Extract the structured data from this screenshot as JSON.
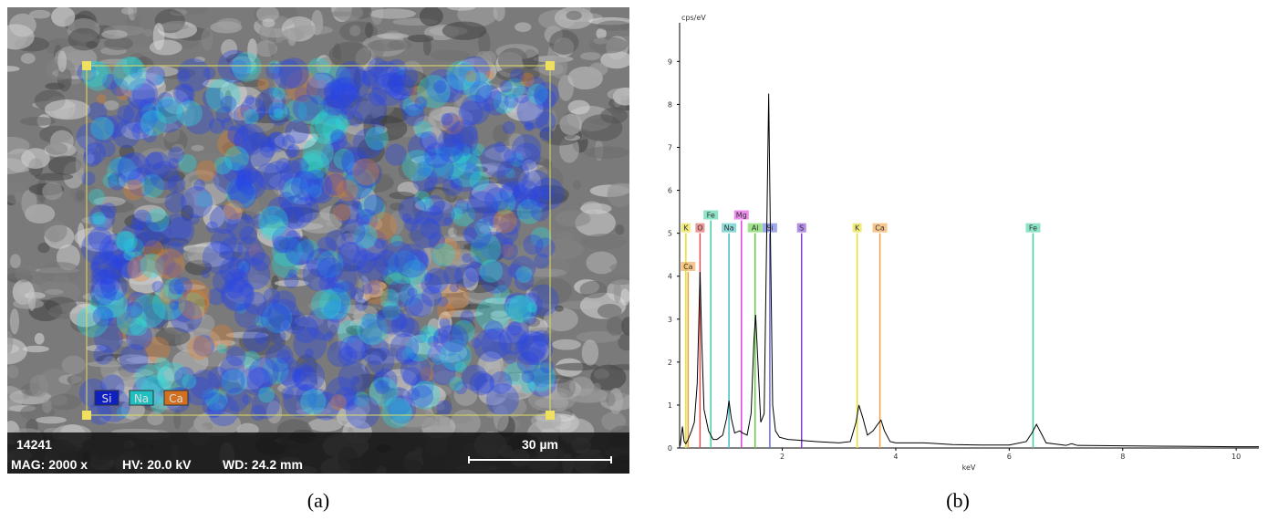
{
  "panel_a": {
    "image_label": "14241",
    "mag": "MAG: 2000 x",
    "hv": "HV: 20.0 kV",
    "wd": "WD: 24.2 mm",
    "scale_bar": "30 µm",
    "legend": [
      "Si",
      "Na",
      "Ca"
    ],
    "caption": "(a)"
  },
  "panel_b": {
    "caption": "(b)"
  },
  "chart_data": {
    "type": "line",
    "y_label": "cps/eV",
    "x_label": "keV",
    "xlim": [
      0.19,
      10.4
    ],
    "ylim": [
      0,
      9.9
    ],
    "xticks": [
      2,
      4,
      6,
      8,
      10
    ],
    "yticks": [
      0,
      1,
      2,
      3,
      4,
      5,
      6,
      7,
      8,
      9
    ],
    "series": [
      {
        "color": "#000000",
        "x": [
          0.2,
          0.24,
          0.27,
          0.3,
          0.34,
          0.4,
          0.45,
          0.5,
          0.53,
          0.55,
          0.58,
          0.62,
          0.7,
          0.78,
          0.85,
          0.95,
          1.02,
          1.06,
          1.1,
          1.16,
          1.25,
          1.3,
          1.38,
          1.45,
          1.5,
          1.53,
          1.57,
          1.62,
          1.68,
          1.72,
          1.76,
          1.79,
          1.83,
          1.88,
          1.95,
          2.1,
          2.3,
          2.6,
          3.0,
          3.2,
          3.3,
          3.35,
          3.42,
          3.5,
          3.6,
          3.68,
          3.74,
          3.8,
          3.9,
          4.0,
          4.5,
          5.0,
          5.5,
          6.0,
          6.3,
          6.4,
          6.48,
          6.56,
          6.65,
          7.0,
          7.1,
          7.2,
          8.0,
          9.0,
          10.0,
          10.4
        ],
        "values": [
          0.05,
          0.5,
          0.15,
          0.1,
          0.2,
          0.4,
          0.6,
          1.5,
          3.0,
          4.1,
          2.5,
          0.9,
          0.4,
          0.2,
          0.2,
          0.3,
          0.7,
          1.1,
          0.7,
          0.35,
          0.4,
          0.35,
          0.3,
          0.8,
          2.5,
          3.1,
          2.0,
          0.6,
          0.8,
          4.5,
          8.25,
          5.0,
          1.0,
          0.4,
          0.25,
          0.2,
          0.18,
          0.15,
          0.12,
          0.15,
          0.6,
          1.0,
          0.7,
          0.3,
          0.4,
          0.55,
          0.65,
          0.4,
          0.15,
          0.12,
          0.12,
          0.08,
          0.07,
          0.07,
          0.15,
          0.35,
          0.55,
          0.35,
          0.12,
          0.06,
          0.1,
          0.06,
          0.05,
          0.04,
          0.03,
          0.03
        ]
      }
    ],
    "element_markers": [
      {
        "label": "K",
        "energy": 0.3,
        "height": 5.0,
        "color": "#e8e020"
      },
      {
        "label": "Ca",
        "energy": 0.34,
        "height": 4.1,
        "color": "#f0a040"
      },
      {
        "label": "O",
        "energy": 0.55,
        "height": 5.0,
        "color": "#e05050"
      },
      {
        "label": "Fe",
        "energy": 0.74,
        "height": 5.3,
        "color": "#40d0a0"
      },
      {
        "label": "Na",
        "energy": 1.06,
        "height": 5.0,
        "color": "#40c0c0"
      },
      {
        "label": "Mg",
        "energy": 1.28,
        "height": 5.3,
        "color": "#e040e0"
      },
      {
        "label": "Al",
        "energy": 1.52,
        "height": 5.0,
        "color": "#60d040"
      },
      {
        "label": "Si",
        "energy": 1.78,
        "height": 5.0,
        "color": "#6070e0"
      },
      {
        "label": "S",
        "energy": 2.34,
        "height": 5.0,
        "color": "#8040d0"
      },
      {
        "label": "K",
        "energy": 3.32,
        "height": 5.0,
        "color": "#e8e020"
      },
      {
        "label": "Ca",
        "energy": 3.72,
        "height": 5.0,
        "color": "#f0a040"
      },
      {
        "label": "Fe",
        "energy": 6.42,
        "height": 5.0,
        "color": "#40d0a0"
      }
    ]
  }
}
